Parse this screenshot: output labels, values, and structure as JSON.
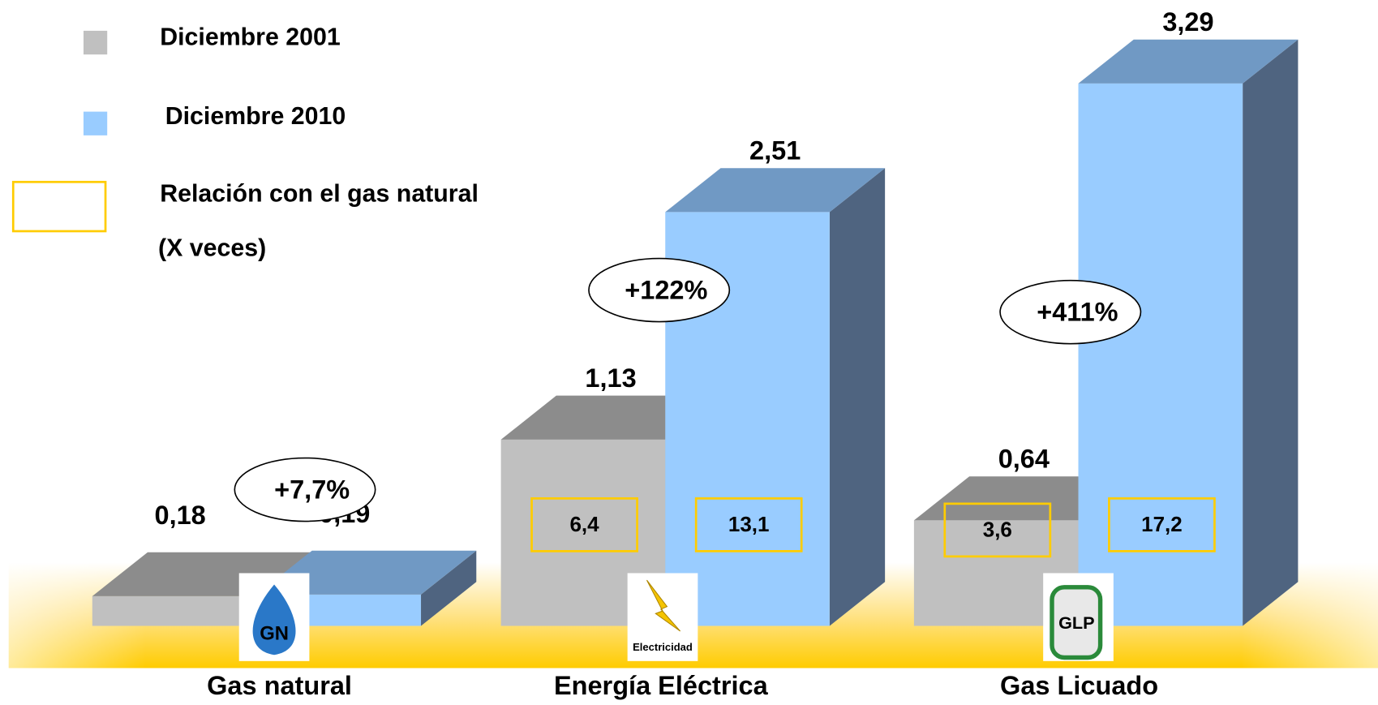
{
  "chart_data": {
    "type": "bar3d",
    "categories": [
      "Gas natural",
      "Energía Eléctrica",
      "Gas Licuado"
    ],
    "series": [
      {
        "name": "Diciembre 2001",
        "color": "#c0c0c0",
        "values": [
          0.18,
          1.13,
          0.64
        ],
        "value_labels": [
          "0,18",
          "1,13",
          "0,64"
        ],
        "ratio_labels": [
          null,
          "6,4",
          "3,6"
        ]
      },
      {
        "name": "Diciembre 2010",
        "color": "#99ccff",
        "values": [
          0.19,
          2.51,
          3.29
        ],
        "value_labels": [
          "0,19",
          "2,51",
          "3,29"
        ],
        "ratio_labels": [
          null,
          "13,1",
          "17,2"
        ]
      }
    ],
    "ratio_legend": [
      "Relación con el gas natural",
      "(X veces)"
    ],
    "changes": [
      "+7,7%",
      "+122%",
      "+411%"
    ],
    "icons": [
      "GN",
      "Electricidad",
      "GLP"
    ]
  }
}
